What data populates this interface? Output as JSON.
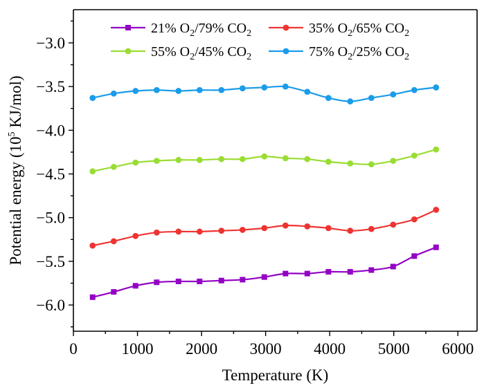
{
  "chart_data": {
    "type": "line",
    "xlabel": "Temperature  (K)",
    "ylabel": {
      "prefix": "Potential energy (10",
      "exponent": "5",
      "suffix": " KJ/mol)"
    },
    "xlim": [
      0,
      6300
    ],
    "ylim": [
      -6.3,
      -2.62
    ],
    "x_ticks": [
      0,
      1000,
      2000,
      3000,
      4000,
      5000,
      6000
    ],
    "x_tick_labels": [
      "0",
      "1000",
      "2000",
      "3000",
      "4000",
      "5000",
      "6000"
    ],
    "y_ticks": [
      -6.0,
      -5.5,
      -5.0,
      -4.5,
      -4.0,
      -3.5,
      -3.0
    ],
    "y_tick_labels": [
      "−6.0",
      "−5.5",
      "−5.0",
      "−4.5",
      "−4.0",
      "−3.5",
      "−3.0"
    ],
    "grid": false,
    "legend_position": "top",
    "x": [
      300,
      630,
      970,
      1300,
      1640,
      1970,
      2310,
      2640,
      2980,
      3310,
      3650,
      3980,
      4320,
      4650,
      4990,
      5320,
      5660
    ],
    "series": [
      {
        "name": "21% O2/79% CO2",
        "legend_parts": [
          [
            "21% O",
            ""
          ],
          [
            "2",
            "sub"
          ],
          [
            "/79% CO",
            ""
          ],
          [
            "2",
            "sub"
          ]
        ],
        "color": "#9300c4",
        "marker": "square",
        "values": [
          -5.91,
          -5.85,
          -5.78,
          -5.74,
          -5.73,
          -5.73,
          -5.72,
          -5.71,
          -5.68,
          -5.64,
          -5.64,
          -5.62,
          -5.62,
          -5.6,
          -5.56,
          -5.44,
          -5.34
        ]
      },
      {
        "name": "35% O2/65% CO2",
        "legend_parts": [
          [
            "35% O",
            ""
          ],
          [
            "2",
            "sub"
          ],
          [
            "/65% CO",
            ""
          ],
          [
            "2",
            "sub"
          ]
        ],
        "color": "#ee3432",
        "marker": "circle",
        "values": [
          -5.32,
          -5.27,
          -5.21,
          -5.17,
          -5.16,
          -5.16,
          -5.15,
          -5.14,
          -5.12,
          -5.09,
          -5.1,
          -5.12,
          -5.15,
          -5.13,
          -5.08,
          -5.02,
          -4.91
        ]
      },
      {
        "name": "55% O2/45% CO2",
        "legend_parts": [
          [
            "55% O",
            ""
          ],
          [
            "2",
            "sub"
          ],
          [
            "/45% CO",
            ""
          ],
          [
            "2",
            "sub"
          ]
        ],
        "color": "#99dd33",
        "marker": "circle",
        "values": [
          -4.47,
          -4.42,
          -4.37,
          -4.35,
          -4.34,
          -4.34,
          -4.33,
          -4.33,
          -4.3,
          -4.32,
          -4.33,
          -4.36,
          -4.38,
          -4.39,
          -4.35,
          -4.29,
          -4.22
        ]
      },
      {
        "name": "75% O2/25% CO2",
        "legend_parts": [
          [
            "75% O",
            ""
          ],
          [
            "2",
            "sub"
          ],
          [
            "/25% CO",
            ""
          ],
          [
            "2",
            "sub"
          ]
        ],
        "color": "#1a9cea",
        "marker": "circle",
        "values": [
          -3.63,
          -3.58,
          -3.55,
          -3.54,
          -3.55,
          -3.54,
          -3.54,
          -3.52,
          -3.51,
          -3.5,
          -3.56,
          -3.63,
          -3.67,
          -3.63,
          -3.59,
          -3.54,
          -3.51
        ]
      }
    ]
  }
}
